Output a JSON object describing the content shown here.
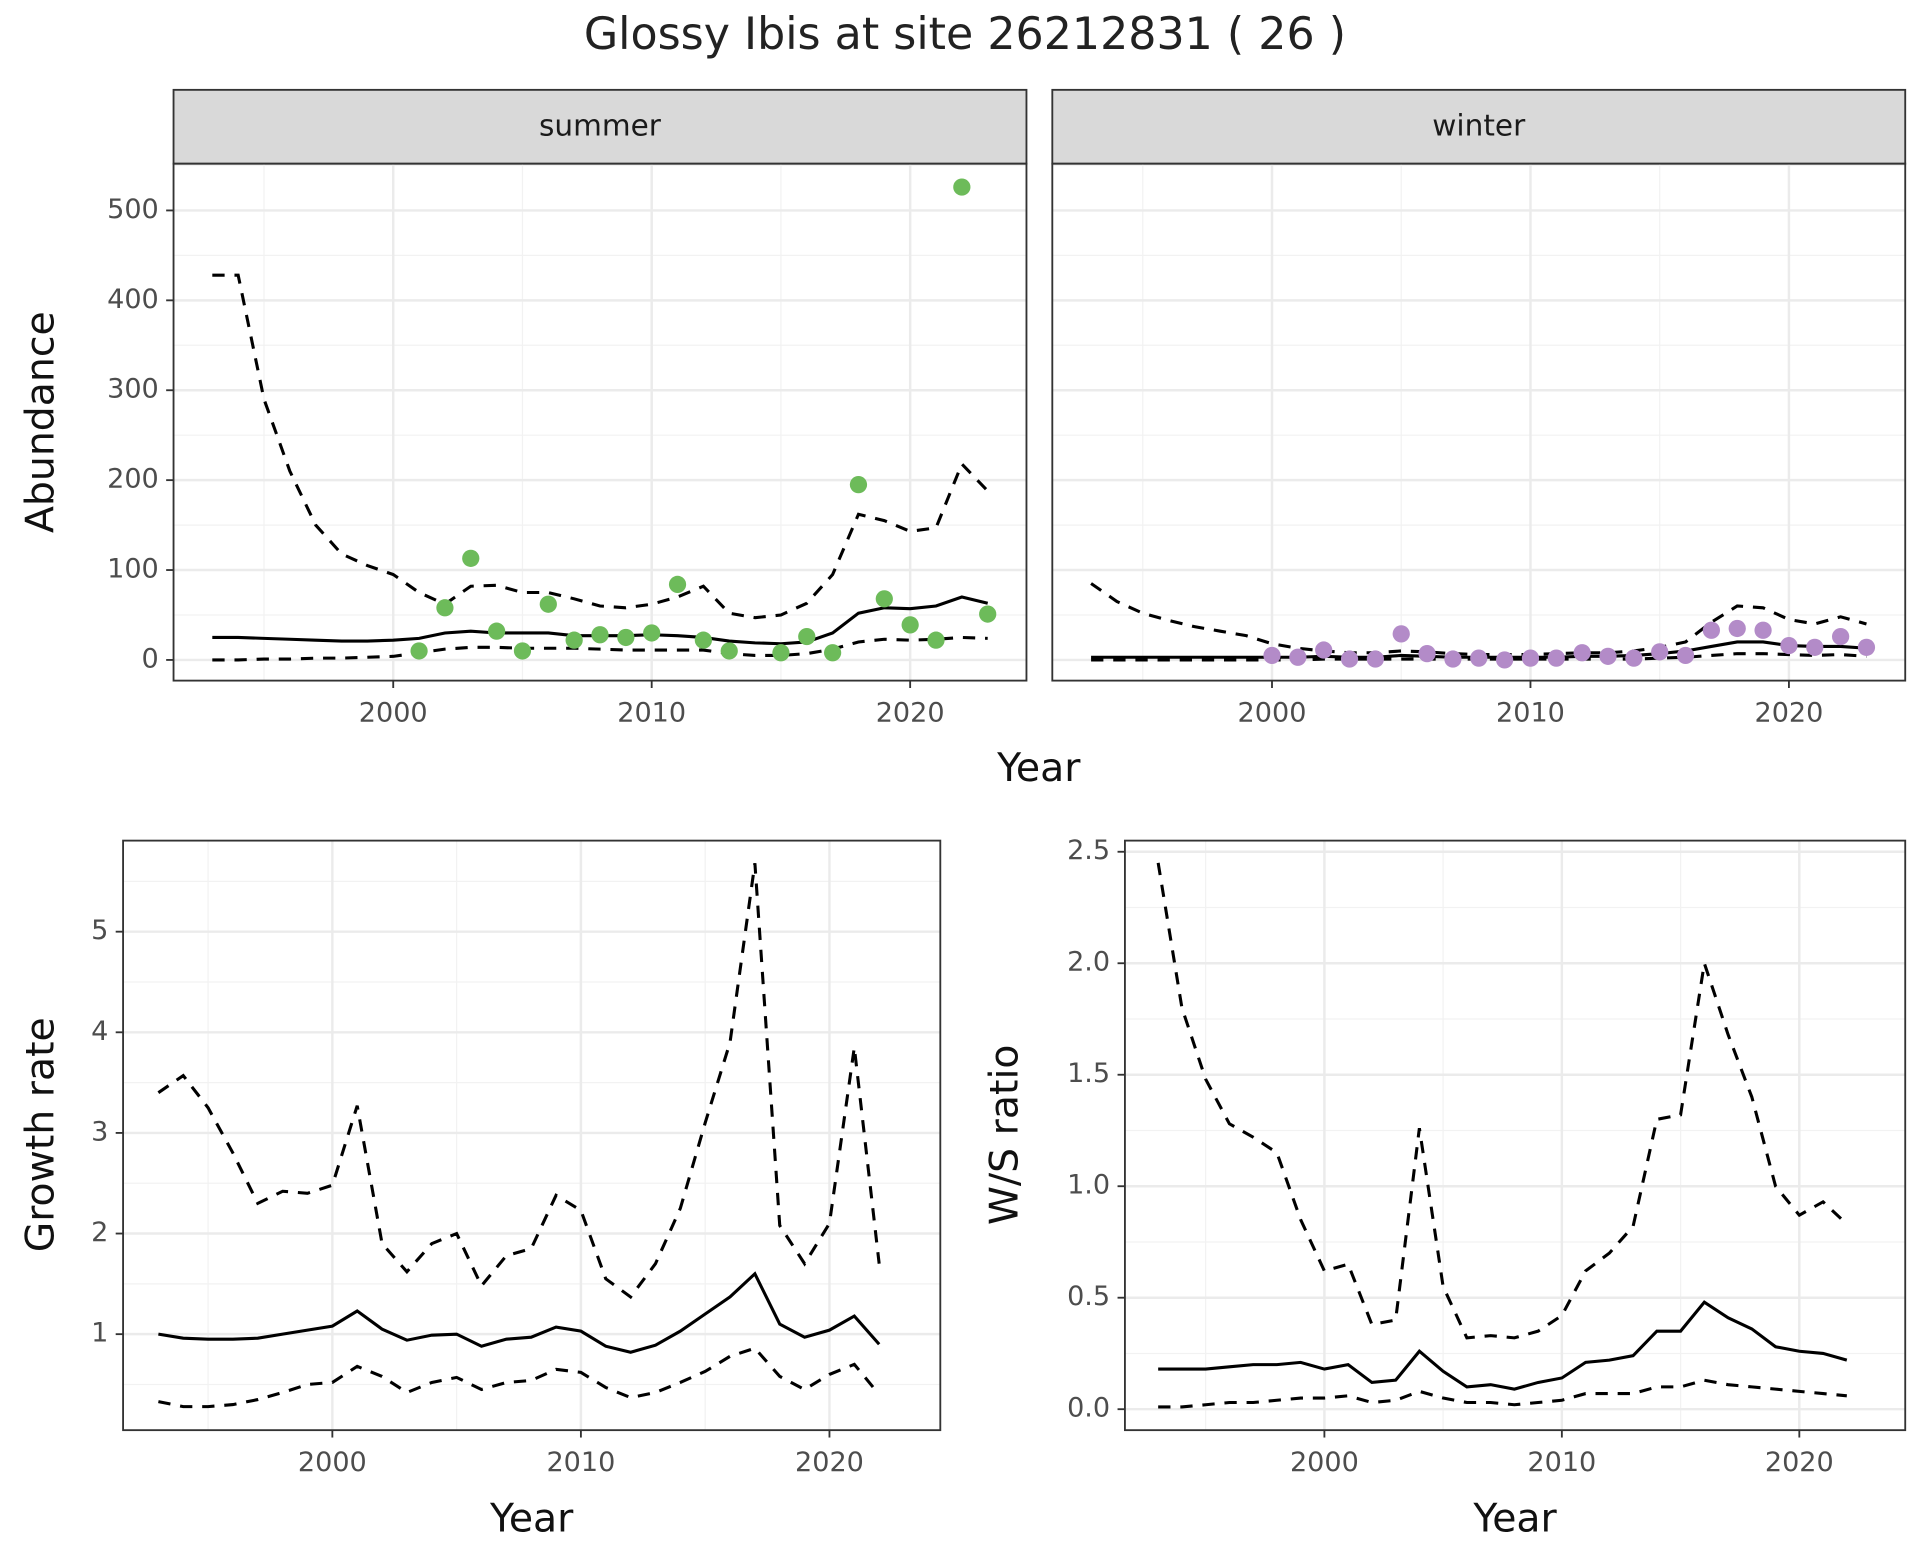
{
  "title": "Glossy Ibis at site 26212831 ( 26 )",
  "chart_data": [
    {
      "type": "line",
      "title": "summer",
      "ylabel": "Abundance",
      "xlabel": "Year",
      "xlim": [
        1991.5,
        2024.5
      ],
      "ylim": [
        -23,
        552
      ],
      "xticks": [
        2000,
        2010,
        2020
      ],
      "yticks": [
        0,
        100,
        200,
        300,
        400,
        500
      ],
      "grid": true,
      "x": [
        1993,
        1994,
        1995,
        1996,
        1997,
        1998,
        1999,
        2000,
        2001,
        2002,
        2003,
        2004,
        2005,
        2006,
        2007,
        2008,
        2009,
        2010,
        2011,
        2012,
        2013,
        2014,
        2015,
        2016,
        2017,
        2018,
        2019,
        2020,
        2021,
        2022,
        2023
      ],
      "series": [
        {
          "line": "solid",
          "color": "#000000",
          "values": [
            25,
            25,
            24,
            23,
            22,
            21,
            21,
            22,
            24,
            30,
            32,
            30,
            30,
            30,
            27,
            27,
            27,
            28,
            27,
            25,
            21,
            19,
            18,
            20,
            30,
            52,
            58,
            57,
            60,
            70,
            63
          ]
        },
        {
          "line": "dashed",
          "color": "#000000",
          "values": [
            428,
            428,
            290,
            210,
            150,
            118,
            105,
            95,
            75,
            62,
            82,
            83,
            75,
            75,
            68,
            60,
            58,
            62,
            70,
            82,
            52,
            47,
            50,
            63,
            95,
            162,
            155,
            143,
            147,
            218,
            188
          ]
        },
        {
          "line": "dashed",
          "color": "#000000",
          "values": [
            0,
            0,
            1,
            1,
            2,
            2,
            3,
            4,
            8,
            12,
            14,
            14,
            13,
            13,
            13,
            12,
            11,
            11,
            11,
            11,
            7,
            5,
            5,
            7,
            12,
            20,
            23,
            22,
            23,
            25,
            24
          ]
        },
        {
          "marker": "circle",
          "color": "#6dbb5a",
          "x": [
            2001,
            2002,
            2003,
            2004,
            2005,
            2006,
            2007,
            2008,
            2009,
            2010,
            2011,
            2012,
            2013,
            2015,
            2016,
            2017,
            2018,
            2019,
            2020,
            2021,
            2022,
            2023
          ],
          "values": [
            10,
            58,
            113,
            32,
            10,
            62,
            22,
            28,
            25,
            30,
            84,
            22,
            10,
            8,
            26,
            8,
            195,
            68,
            39,
            22,
            526,
            51
          ]
        }
      ]
    },
    {
      "type": "line",
      "title": "winter",
      "shared_y": true,
      "xlim": [
        1991.5,
        2024.5
      ],
      "ylim": [
        -23,
        552
      ],
      "xticks": [
        2000,
        2010,
        2020
      ],
      "grid": true,
      "x": [
        1993,
        1994,
        1995,
        1996,
        1997,
        1998,
        1999,
        2000,
        2001,
        2002,
        2003,
        2004,
        2005,
        2006,
        2007,
        2008,
        2009,
        2010,
        2011,
        2012,
        2013,
        2014,
        2015,
        2016,
        2017,
        2018,
        2019,
        2020,
        2021,
        2022,
        2023
      ],
      "series": [
        {
          "line": "solid",
          "color": "#000000",
          "values": [
            3,
            3,
            3,
            3,
            3,
            3,
            3,
            3,
            3,
            4,
            3,
            3,
            5,
            4,
            3,
            3,
            3,
            3,
            3,
            4,
            4,
            5,
            7,
            10,
            15,
            20,
            20,
            16,
            15,
            15,
            13
          ]
        },
        {
          "line": "dashed",
          "color": "#000000",
          "values": [
            85,
            65,
            52,
            44,
            37,
            32,
            27,
            18,
            13,
            10,
            8,
            8,
            10,
            9,
            7,
            6,
            6,
            6,
            7,
            8,
            8,
            10,
            14,
            20,
            42,
            60,
            58,
            45,
            40,
            48,
            40
          ]
        },
        {
          "line": "dashed",
          "color": "#000000",
          "values": [
            0,
            0,
            0,
            0,
            0,
            0,
            0,
            0,
            0,
            1,
            1,
            1,
            1,
            1,
            1,
            1,
            1,
            1,
            1,
            1,
            1,
            1,
            2,
            3,
            5,
            7,
            7,
            6,
            5,
            6,
            4
          ]
        },
        {
          "marker": "circle",
          "color": "#b38bc8",
          "x": [
            2000,
            2001,
            2002,
            2003,
            2004,
            2005,
            2006,
            2007,
            2008,
            2009,
            2010,
            2011,
            2012,
            2013,
            2014,
            2015,
            2016,
            2017,
            2018,
            2019,
            2020,
            2021,
            2022,
            2023
          ],
          "values": [
            5,
            3,
            11,
            1,
            1,
            29,
            7,
            1,
            2,
            0,
            2,
            2,
            8,
            4,
            2,
            9,
            5,
            33,
            35,
            33,
            16,
            14,
            26,
            14
          ]
        }
      ]
    },
    {
      "type": "line",
      "ylabel": "Growth rate",
      "xlabel": "Year",
      "xlim": [
        1991.58,
        2024.46
      ],
      "ylim": [
        0.046,
        5.905
      ],
      "xticks": [
        2000,
        2010,
        2020
      ],
      "yticks": [
        1,
        2,
        3,
        4,
        5
      ],
      "grid": true,
      "x": [
        1993,
        1994,
        1995,
        1996,
        1997,
        1998,
        1999,
        2000,
        2001,
        2002,
        2003,
        2004,
        2005,
        2006,
        2007,
        2008,
        2009,
        2010,
        2011,
        2012,
        2013,
        2014,
        2015,
        2016,
        2017,
        2018,
        2019,
        2020,
        2021,
        2022
      ],
      "series": [
        {
          "line": "solid",
          "color": "#000000",
          "values": [
            1.0,
            0.96,
            0.95,
            0.95,
            0.96,
            1.0,
            1.04,
            1.08,
            1.23,
            1.05,
            0.94,
            0.99,
            1.0,
            0.88,
            0.95,
            0.97,
            1.07,
            1.03,
            0.88,
            0.82,
            0.89,
            1.03,
            1.2,
            1.37,
            1.6,
            1.1,
            0.97,
            1.04,
            1.18,
            0.9
          ]
        },
        {
          "line": "dashed",
          "color": "#000000",
          "values": [
            3.4,
            3.57,
            3.25,
            2.8,
            2.3,
            2.42,
            2.4,
            2.48,
            3.27,
            1.9,
            1.62,
            1.9,
            2.0,
            1.48,
            1.78,
            1.85,
            2.38,
            2.23,
            1.55,
            1.37,
            1.7,
            2.25,
            3.1,
            3.9,
            5.68,
            2.08,
            1.7,
            2.1,
            3.85,
            1.7
          ]
        },
        {
          "line": "dashed",
          "color": "#000000",
          "values": [
            0.33,
            0.28,
            0.28,
            0.3,
            0.35,
            0.42,
            0.5,
            0.52,
            0.68,
            0.58,
            0.42,
            0.52,
            0.57,
            0.45,
            0.52,
            0.54,
            0.65,
            0.62,
            0.47,
            0.37,
            0.42,
            0.52,
            0.63,
            0.78,
            0.86,
            0.58,
            0.45,
            0.6,
            0.7,
            0.4
          ]
        }
      ]
    },
    {
      "type": "line",
      "ylabel": "W/S ratio",
      "xlabel": "Year",
      "xlim": [
        1991.6,
        2024.46
      ],
      "ylim": [
        -0.094,
        2.55
      ],
      "xticks": [
        2000,
        2010,
        2020
      ],
      "yticks": [
        {
          "value": 0,
          "label": "0.0"
        },
        0.5,
        {
          "value": 1,
          "label": "1.0"
        },
        1.5,
        {
          "value": 2,
          "label": "2.0"
        },
        2.5
      ],
      "grid": true,
      "x": [
        1993,
        1994,
        1995,
        1996,
        1997,
        1998,
        1999,
        2000,
        2001,
        2002,
        2003,
        2004,
        2005,
        2006,
        2007,
        2008,
        2009,
        2010,
        2011,
        2012,
        2013,
        2014,
        2015,
        2016,
        2017,
        2018,
        2019,
        2020,
        2021,
        2022
      ],
      "series": [
        {
          "line": "solid",
          "color": "#000000",
          "values": [
            0.18,
            0.18,
            0.18,
            0.19,
            0.2,
            0.2,
            0.21,
            0.18,
            0.2,
            0.12,
            0.13,
            0.26,
            0.17,
            0.1,
            0.11,
            0.09,
            0.12,
            0.14,
            0.21,
            0.22,
            0.24,
            0.35,
            0.35,
            0.48,
            0.41,
            0.36,
            0.28,
            0.26,
            0.25,
            0.22
          ]
        },
        {
          "line": "dashed",
          "color": "#000000",
          "values": [
            2.45,
            1.8,
            1.48,
            1.28,
            1.22,
            1.15,
            0.85,
            0.62,
            0.65,
            0.38,
            0.4,
            1.26,
            0.55,
            0.32,
            0.33,
            0.32,
            0.35,
            0.42,
            0.62,
            0.7,
            0.82,
            1.3,
            1.32,
            2.0,
            1.68,
            1.4,
            1.0,
            0.87,
            0.93,
            0.83
          ]
        },
        {
          "line": "dashed",
          "color": "#000000",
          "values": [
            0.01,
            0.01,
            0.02,
            0.03,
            0.03,
            0.04,
            0.05,
            0.05,
            0.06,
            0.03,
            0.04,
            0.08,
            0.05,
            0.03,
            0.03,
            0.02,
            0.03,
            0.04,
            0.07,
            0.07,
            0.07,
            0.1,
            0.1,
            0.13,
            0.11,
            0.1,
            0.09,
            0.08,
            0.07,
            0.06
          ]
        }
      ]
    }
  ]
}
